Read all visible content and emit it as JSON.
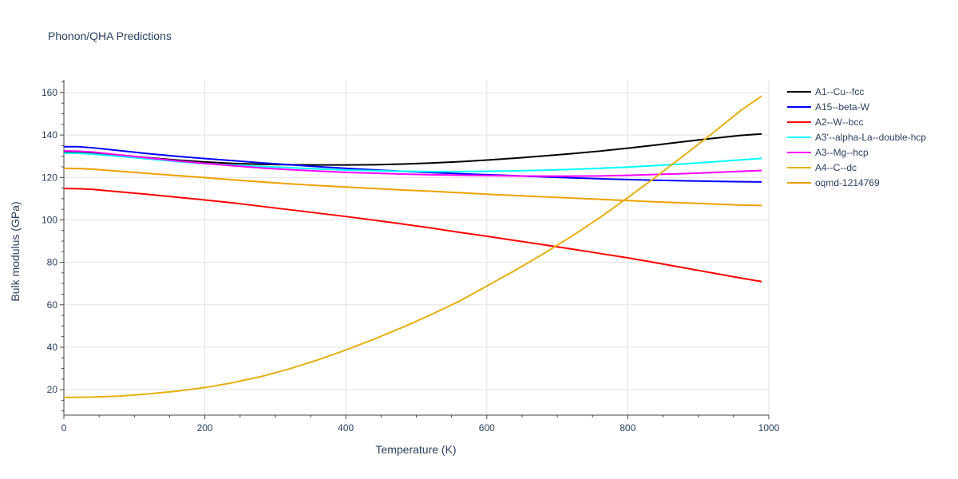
{
  "chart_data": {
    "type": "line",
    "title": "Phonon/QHA Predictions",
    "xlabel": "Temperature (K)",
    "ylabel": "Bulk modulus (GPa)",
    "xlim": [
      0,
      1000
    ],
    "ylim": [
      8,
      166
    ],
    "xticks": [
      0,
      200,
      400,
      600,
      800,
      1000
    ],
    "yticks": [
      20,
      40,
      60,
      80,
      100,
      120,
      140,
      160
    ],
    "grid": true,
    "legend_position": "top-right",
    "x": [
      0,
      20,
      40,
      80,
      120,
      160,
      200,
      240,
      280,
      320,
      360,
      400,
      440,
      480,
      520,
      560,
      600,
      640,
      680,
      720,
      760,
      800,
      840,
      880,
      920,
      960,
      990
    ],
    "series": [
      {
        "name": "A1--Cu--fcc",
        "color": "#000000",
        "values": [
          132.0,
          132.0,
          131.5,
          130.5,
          129.3,
          128.2,
          127.3,
          126.6,
          126.2,
          126.0,
          125.9,
          125.9,
          126.0,
          126.3,
          126.8,
          127.4,
          128.2,
          129.1,
          130.1,
          131.2,
          132.4,
          133.8,
          135.3,
          136.9,
          138.4,
          139.8,
          140.5
        ]
      },
      {
        "name": "A15--beta-W",
        "color": "#0000ff",
        "values": [
          134.5,
          134.5,
          134.0,
          132.6,
          131.2,
          130.0,
          128.9,
          127.9,
          126.9,
          126.0,
          125.1,
          124.3,
          123.6,
          122.9,
          122.3,
          121.8,
          121.3,
          120.8,
          120.3,
          119.8,
          119.4,
          119.0,
          118.7,
          118.4,
          118.2,
          118.0,
          117.9
        ]
      },
      {
        "name": "A2--W--bcc",
        "color": "#ff0000",
        "values": [
          114.8,
          114.7,
          114.4,
          113.2,
          112.0,
          110.7,
          109.4,
          108.0,
          106.4,
          104.8,
          103.2,
          101.6,
          99.9,
          98.1,
          96.2,
          94.2,
          92.3,
          90.3,
          88.3,
          86.3,
          84.2,
          82.1,
          79.8,
          77.4,
          75.0,
          72.6,
          70.9
        ]
      },
      {
        "name": "A3'--alpha-La--double-hcp",
        "color": "#00ffff",
        "values": [
          131.5,
          131.4,
          131.0,
          129.9,
          128.7,
          127.5,
          126.5,
          125.8,
          125.2,
          124.6,
          124.0,
          123.5,
          123.2,
          122.9,
          122.8,
          122.8,
          122.9,
          123.1,
          123.4,
          123.8,
          124.3,
          124.9,
          125.6,
          126.4,
          127.3,
          128.3,
          129.0
        ]
      },
      {
        "name": "A3--Mg--hcp",
        "color": "#ff00ff",
        "values": [
          132.5,
          132.4,
          132.0,
          130.6,
          129.2,
          127.8,
          126.6,
          125.5,
          124.5,
          123.7,
          123.0,
          122.4,
          122.0,
          121.6,
          121.3,
          121.1,
          120.9,
          120.7,
          120.6,
          120.6,
          120.7,
          121.0,
          121.4,
          121.8,
          122.3,
          122.9,
          123.3
        ]
      },
      {
        "name": "A4--C--dc",
        "color": "#e6b010",
        "values": [
          16.3,
          16.4,
          16.5,
          17.0,
          18.0,
          19.3,
          21.0,
          23.3,
          26.2,
          29.8,
          34.0,
          38.7,
          43.8,
          49.3,
          55.2,
          61.5,
          68.8,
          76.2,
          84.0,
          92.2,
          101.0,
          110.5,
          120.3,
          130.5,
          140.8,
          151.5,
          158.4
        ]
      },
      {
        "name": "oqmd-1214769",
        "color": "#f0a000",
        "values": [
          124.3,
          124.2,
          123.9,
          122.9,
          121.9,
          120.9,
          119.9,
          118.9,
          117.9,
          117.0,
          116.2,
          115.5,
          114.8,
          114.1,
          113.5,
          112.8,
          112.1,
          111.5,
          110.9,
          110.3,
          109.7,
          109.1,
          108.5,
          108.0,
          107.5,
          107.0,
          106.8
        ]
      }
    ]
  }
}
